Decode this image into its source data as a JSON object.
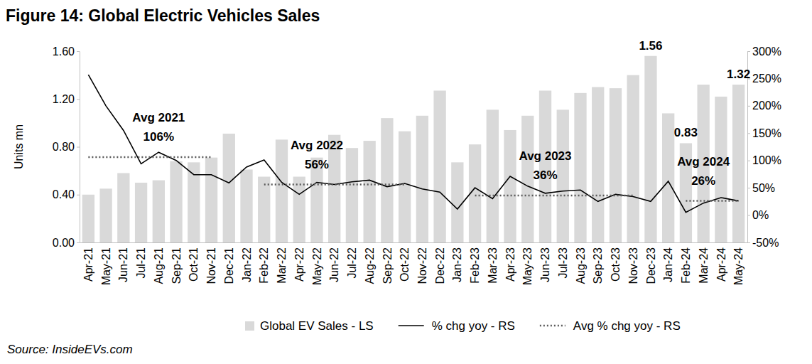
{
  "chart_data": {
    "type": "bar",
    "title": "Figure 14: Global Electric Vehicles Sales",
    "y_label": "Units mn",
    "source": "Source: InsideEVs.com",
    "categories": [
      "Apr-21",
      "May-21",
      "Jun-21",
      "Jul-21",
      "Aug-21",
      "Sep-21",
      "Oct-21",
      "Nov-21",
      "Dec-21",
      "Jan-22",
      "Feb-22",
      "Mar-22",
      "Apr-22",
      "May-22",
      "Jun-22",
      "Jul-22",
      "Aug-22",
      "Sep-22",
      "Oct-22",
      "Nov-22",
      "Dec-22",
      "Jan-23",
      "Feb-23",
      "Mar-23",
      "Apr-23",
      "May-23",
      "Jun-23",
      "Jul-23",
      "Aug-23",
      "Sep-23",
      "Oct-23",
      "Nov-23",
      "Dec-23",
      "Jan-24",
      "Feb-24",
      "Mar-24",
      "Apr-24",
      "May-24"
    ],
    "series": [
      {
        "name": "Global EV Sales - LS",
        "type": "bar",
        "color": "#d9d9d9",
        "values": [
          0.4,
          0.45,
          0.58,
          0.5,
          0.52,
          0.68,
          0.67,
          0.71,
          0.91,
          0.61,
          0.55,
          0.86,
          0.55,
          0.71,
          0.9,
          0.79,
          0.85,
          1.04,
          0.93,
          1.06,
          1.27,
          0.67,
          0.82,
          1.11,
          0.94,
          1.06,
          1.27,
          1.11,
          1.25,
          1.3,
          1.29,
          1.4,
          1.56,
          1.08,
          0.83,
          1.32,
          1.22,
          1.32
        ]
      },
      {
        "name": "% chg yoy - RS",
        "type": "line",
        "color": "#000000",
        "line_style": "solid",
        "axis": "y2",
        "values": [
          257,
          200,
          155,
          94,
          115,
          100,
          74,
          74,
          59,
          88,
          101,
          60,
          38,
          60,
          56,
          61,
          64,
          52,
          58,
          48,
          42,
          11,
          50,
          30,
          71,
          53,
          40,
          44,
          46,
          25,
          38,
          34,
          25,
          62,
          5,
          22,
          32,
          26
        ]
      },
      {
        "name": "Avg % chg yoy - RS",
        "type": "line",
        "color": "#595959",
        "line_style": "dotted",
        "axis": "y2",
        "values": [
          106,
          106,
          106,
          106,
          106,
          106,
          106,
          106,
          null,
          null,
          56,
          56,
          56,
          56,
          56,
          56,
          56,
          56,
          56,
          null,
          null,
          null,
          36,
          36,
          36,
          36,
          36,
          36,
          36,
          36,
          36,
          36,
          null,
          null,
          26,
          26,
          26,
          26
        ]
      }
    ],
    "annotations": [
      {
        "x": "Aug-21",
        "lines": [
          "Avg 2021",
          "106%"
        ]
      },
      {
        "x": "May-22",
        "lines": [
          "Avg 2022",
          "56%"
        ]
      },
      {
        "x": "Jun-23",
        "lines": [
          "Avg 2023",
          "36%"
        ]
      },
      {
        "x": "Mar-24",
        "lines": [
          "Avg 2024",
          "26%"
        ]
      },
      {
        "x": "Dec-23",
        "text": "1.56"
      },
      {
        "x": "Feb-24",
        "text": "0.83"
      },
      {
        "x": "May-24",
        "text": "1.32"
      }
    ],
    "ylim": [
      0,
      1.6
    ],
    "yticks": [
      {
        "value": 0,
        "label": "0.00"
      },
      {
        "value": 0.4,
        "label": "0.40"
      },
      {
        "value": 0.8,
        "label": "0.80"
      },
      {
        "value": 1.2,
        "label": "1.20"
      },
      {
        "value": 1.6,
        "label": "1.60"
      }
    ],
    "y2lim": [
      -50,
      300
    ],
    "y2ticks": [
      {
        "value": -50,
        "label": "-50%"
      },
      {
        "value": 0,
        "label": "0%"
      },
      {
        "value": 50,
        "label": "50%"
      },
      {
        "value": 100,
        "label": "100%"
      },
      {
        "value": 150,
        "label": "150%"
      },
      {
        "value": 200,
        "label": "200%"
      },
      {
        "value": 250,
        "label": "250%"
      },
      {
        "value": 300,
        "label": "300%"
      }
    ],
    "grid": false,
    "legend": "bottom"
  }
}
